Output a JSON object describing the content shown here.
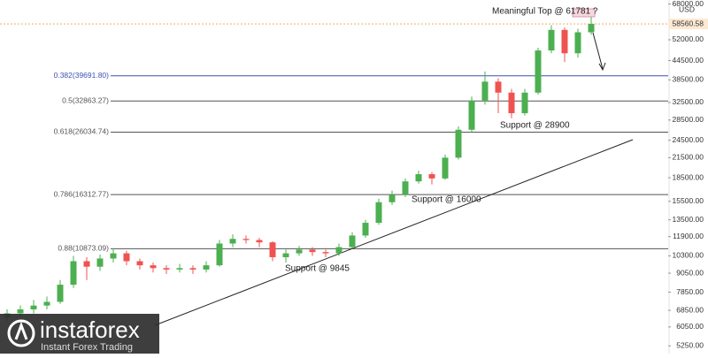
{
  "chart_data": {
    "type": "candlestick",
    "open": [
      6500,
      6700,
      6900,
      7100,
      7300,
      8300,
      9900,
      9500,
      10100,
      10500,
      9900,
      9600,
      9400,
      9300,
      9400,
      9300,
      9600,
      11300,
      11700,
      11600,
      11400,
      10200,
      10500,
      10800,
      10600,
      10500,
      11000,
      12000,
      13200,
      15400,
      16300,
      18000,
      19000,
      18400,
      21500,
      26500,
      33000,
      38000,
      35000,
      30000,
      35000,
      48000,
      56000,
      47000,
      55000
    ],
    "high": [
      6900,
      7100,
      7400,
      7600,
      8600,
      10300,
      10200,
      10400,
      10900,
      10700,
      10100,
      9800,
      9600,
      9700,
      9600,
      9900,
      11600,
      12100,
      12000,
      11800,
      11500,
      10800,
      11100,
      11000,
      10800,
      11300,
      12300,
      13500,
      15800,
      16800,
      18400,
      19500,
      19300,
      22000,
      27200,
      34000,
      41000,
      39000,
      36000,
      36000,
      49000,
      58000,
      57000,
      56500,
      61781
    ],
    "low": [
      6300,
      6500,
      6700,
      6900,
      7200,
      8100,
      8600,
      9200,
      9800,
      9600,
      9300,
      9100,
      9000,
      9100,
      9000,
      9100,
      9500,
      11000,
      11300,
      11000,
      9900,
      9800,
      10300,
      10300,
      10200,
      10300,
      10900,
      11800,
      13000,
      15100,
      16000,
      17700,
      17600,
      18200,
      21200,
      26000,
      32000,
      30000,
      28900,
      29500,
      34500,
      47000,
      44000,
      45500,
      54000
    ],
    "close": [
      6700,
      6900,
      7100,
      7300,
      8300,
      9900,
      9500,
      10100,
      10500,
      9900,
      9600,
      9400,
      9300,
      9400,
      9300,
      9600,
      11300,
      11700,
      11600,
      11400,
      10200,
      10500,
      10800,
      10600,
      10500,
      11000,
      12000,
      13200,
      15400,
      16300,
      18000,
      19000,
      18400,
      21500,
      26500,
      33000,
      38000,
      35000,
      30000,
      35000,
      48000,
      56000,
      47000,
      55000,
      58560
    ],
    "up_color": "#4caf50",
    "down_color": "#ef5350",
    "log_scale": true,
    "ylim": [
      4955,
      70050
    ],
    "y_unit": "USD",
    "yticks": [
      {
        "value": 68000,
        "label": "68000.00"
      },
      {
        "value": 52000,
        "label": "52000.00"
      },
      {
        "value": 44500,
        "label": "44500.00"
      },
      {
        "value": 38500,
        "label": "38500.00"
      },
      {
        "value": 32500,
        "label": "32500.00"
      },
      {
        "value": 28500,
        "label": "28500.00"
      },
      {
        "value": 24500,
        "label": "24500.00"
      },
      {
        "value": 21500,
        "label": "21500.00"
      },
      {
        "value": 18500,
        "label": "18500.00"
      },
      {
        "value": 15500,
        "label": "15500.00"
      },
      {
        "value": 13500,
        "label": "13500.00"
      },
      {
        "value": 11900,
        "label": "11900.00"
      },
      {
        "value": 10300,
        "label": "10300.00"
      },
      {
        "value": 9050,
        "label": "9050.00"
      },
      {
        "value": 7850,
        "label": "7850.00"
      },
      {
        "value": 6850,
        "label": "6850.00"
      },
      {
        "value": 6050,
        "label": "6050.00"
      },
      {
        "value": 5250,
        "label": "5250.00"
      }
    ],
    "current_price": {
      "value": 58560.58,
      "label": "58560.58"
    },
    "fib_levels": [
      {
        "value": 39691.8,
        "label": "0.382(39691.80)",
        "color": "#3f51b5"
      },
      {
        "value": 32863.27,
        "label": "0.5(32863.27)",
        "color": "#555555"
      },
      {
        "value": 26034.74,
        "label": "0.618(26034.74)",
        "color": "#555555"
      },
      {
        "value": 16312.77,
        "label": "0.786(16312.77)",
        "color": "#555555"
      },
      {
        "value": 10873.09,
        "label": "0.88(10873.09)",
        "color": "#555555"
      }
    ],
    "annotations": [
      "Meaningful Top @ 61781 ?",
      "Support @ 28900",
      "Support @ 16000",
      "Support @ 9845"
    ]
  },
  "logo": {
    "name": "instaforex",
    "tagline": "Instant Forex Trading"
  }
}
